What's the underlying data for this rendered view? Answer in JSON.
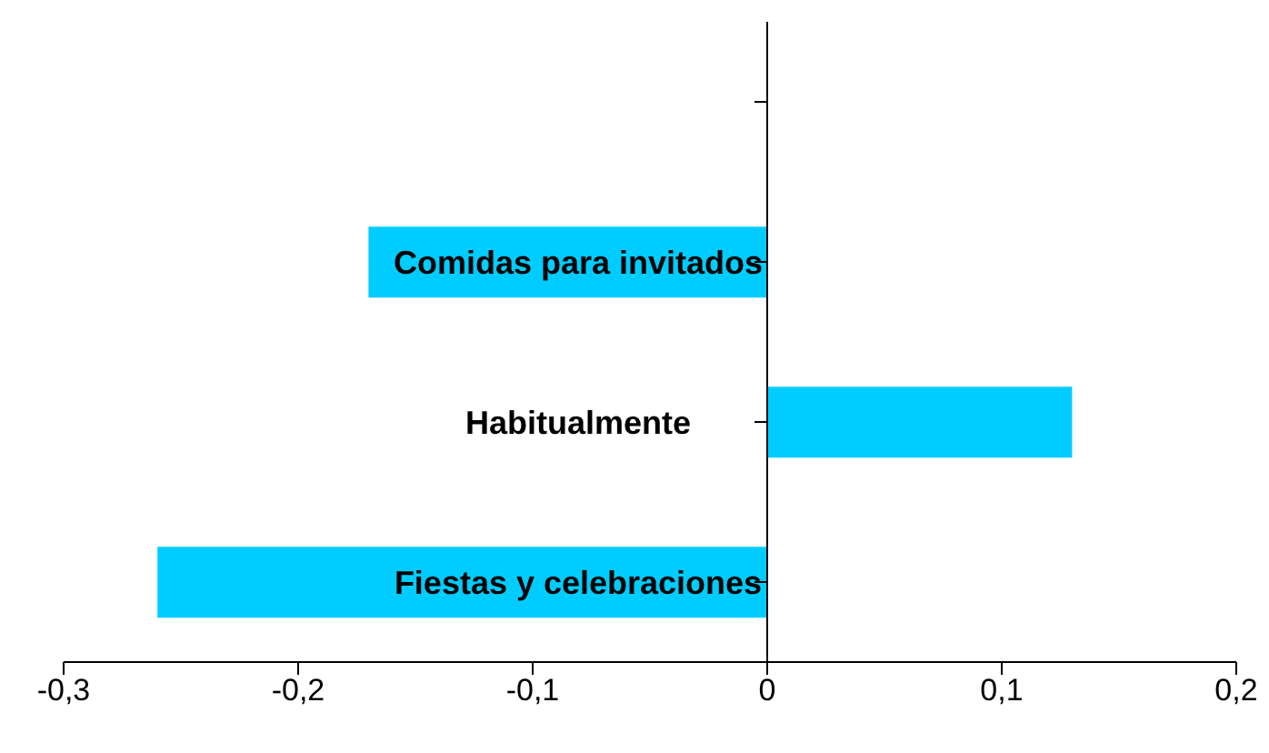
{
  "chart_data": {
    "type": "bar",
    "orientation": "horizontal",
    "categories": [
      null,
      "Comidas para invitados",
      "Habitualmente",
      "Fiestas y celebraciones"
    ],
    "values": [
      null,
      -0.17,
      0.13,
      -0.26
    ],
    "color": "#00ccff",
    "xlim": [
      -0.3,
      0.2
    ],
    "xticks": [
      {
        "value": -0.3,
        "label": "-0,3"
      },
      {
        "value": -0.2,
        "label": "-0,2"
      },
      {
        "value": -0.1,
        "label": "-0,1"
      },
      {
        "value": 0,
        "label": "0"
      },
      {
        "value": 0.1,
        "label": "0,1"
      },
      {
        "value": 0.2,
        "label": "0,2"
      }
    ],
    "grid": false,
    "legend": false
  }
}
